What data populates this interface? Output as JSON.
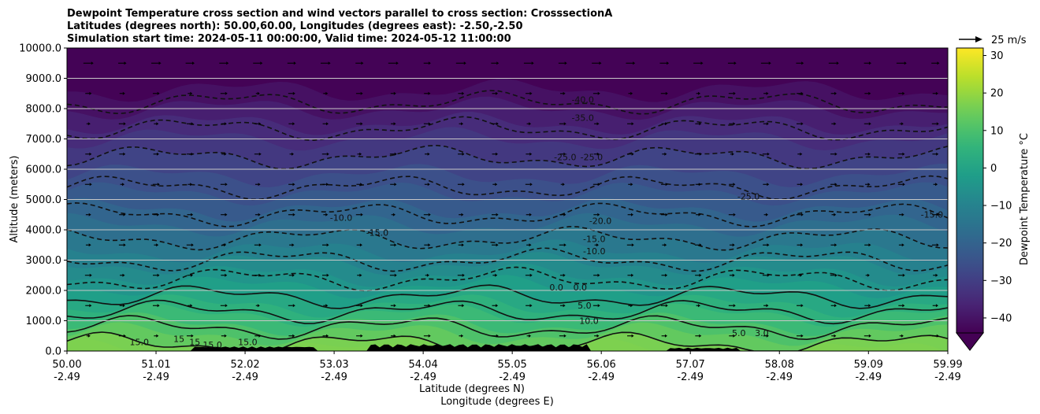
{
  "chart_data": {
    "type": "heatmap",
    "title_lines": [
      "Dewpoint Temperature cross section and wind vectors parallel to cross section: CrosssectionA",
      "Latitudes (degrees north): 50.00,60.00, Longitudes (degrees east): -2.50,-2.50",
      "Simulation start time: 2024-05-11 00:00:00, Valid time: 2024-05-12 11:00:00"
    ],
    "xlabel": "Latitude (degrees N)",
    "xlabel2": "Longitude (degrees E)",
    "ylabel": "Altitude (meters)",
    "ylim": [
      0,
      10000
    ],
    "xlim": [
      50.0,
      59.99
    ],
    "x_ticks": [
      {
        "lat": "50.00",
        "lon": "-2.49"
      },
      {
        "lat": "51.01",
        "lon": "-2.49"
      },
      {
        "lat": "52.02",
        "lon": "-2.49"
      },
      {
        "lat": "53.03",
        "lon": "-2.49"
      },
      {
        "lat": "54.04",
        "lon": "-2.49"
      },
      {
        "lat": "55.05",
        "lon": "-2.49"
      },
      {
        "lat": "56.06",
        "lon": "-2.49"
      },
      {
        "lat": "57.07",
        "lon": "-2.49"
      },
      {
        "lat": "58.08",
        "lon": "-2.49"
      },
      {
        "lat": "59.09",
        "lon": "-2.49"
      },
      {
        "lat": "59.99",
        "lon": "-2.49"
      }
    ],
    "y_ticks": [
      "0.0",
      "1000.0",
      "2000.0",
      "3000.0",
      "4000.0",
      "5000.0",
      "6000.0",
      "7000.0",
      "8000.0",
      "9000.0",
      "10000.0"
    ],
    "grid": "horizontal",
    "colorbar": {
      "label": "Dewpoint Temperature °C",
      "range": [
        -44,
        32
      ],
      "ticks": [
        "30",
        "20",
        "10",
        "0",
        "−10",
        "−20",
        "−30",
        "−40"
      ],
      "extend": "min"
    },
    "quiver_key": {
      "label": "25 m/s"
    },
    "dewpoint_profile": [
      {
        "alt": 0,
        "t": 17
      },
      {
        "alt": 1000,
        "t": 8
      },
      {
        "alt": 2000,
        "t": -2
      },
      {
        "alt": 3000,
        "t": -10
      },
      {
        "alt": 4000,
        "t": -17
      },
      {
        "alt": 5000,
        "t": -23
      },
      {
        "alt": 6000,
        "t": -28
      },
      {
        "alt": 7000,
        "t": -33
      },
      {
        "alt": 8000,
        "t": -39
      },
      {
        "alt": 9000,
        "t": -44
      },
      {
        "alt": 10000,
        "t": -44
      }
    ],
    "contour_labels": [
      {
        "text": "-40.0",
        "lat": 55.85,
        "alt": 8200
      },
      {
        "text": "-35.0",
        "lat": 55.85,
        "alt": 7600
      },
      {
        "text": "-25.0",
        "lat": 55.65,
        "alt": 6300
      },
      {
        "text": "-25.0",
        "lat": 55.95,
        "alt": 6300
      },
      {
        "text": "-25.0",
        "lat": 57.73,
        "alt": 5000
      },
      {
        "text": "-10.0",
        "lat": 53.11,
        "alt": 4300
      },
      {
        "text": "-15.0",
        "lat": 53.52,
        "alt": 3800
      },
      {
        "text": "-20.0",
        "lat": 56.05,
        "alt": 4200
      },
      {
        "text": "-15.0",
        "lat": 55.98,
        "alt": 3600
      },
      {
        "text": "-10.0",
        "lat": 55.98,
        "alt": 3200
      },
      {
        "text": "-15.0",
        "lat": 59.81,
        "alt": 4400
      },
      {
        "text": "0.0",
        "lat": 55.82,
        "alt": 2000
      },
      {
        "text": "0.0",
        "lat": 55.55,
        "alt": 2000
      },
      {
        "text": "5.0",
        "lat": 55.87,
        "alt": 1400
      },
      {
        "text": "10.0",
        "lat": 55.92,
        "alt": 900
      },
      {
        "text": "5.0",
        "lat": 57.62,
        "alt": 500
      },
      {
        "text": "3.0",
        "lat": 57.88,
        "alt": 500
      },
      {
        "text": "15.0",
        "lat": 50.82,
        "alt": 200
      },
      {
        "text": "15",
        "lat": 51.27,
        "alt": 300
      },
      {
        "text": "15",
        "lat": 51.45,
        "alt": 200
      },
      {
        "text": "15.0",
        "lat": 51.65,
        "alt": 100
      },
      {
        "text": "15.0",
        "lat": 52.05,
        "alt": 200
      }
    ]
  }
}
